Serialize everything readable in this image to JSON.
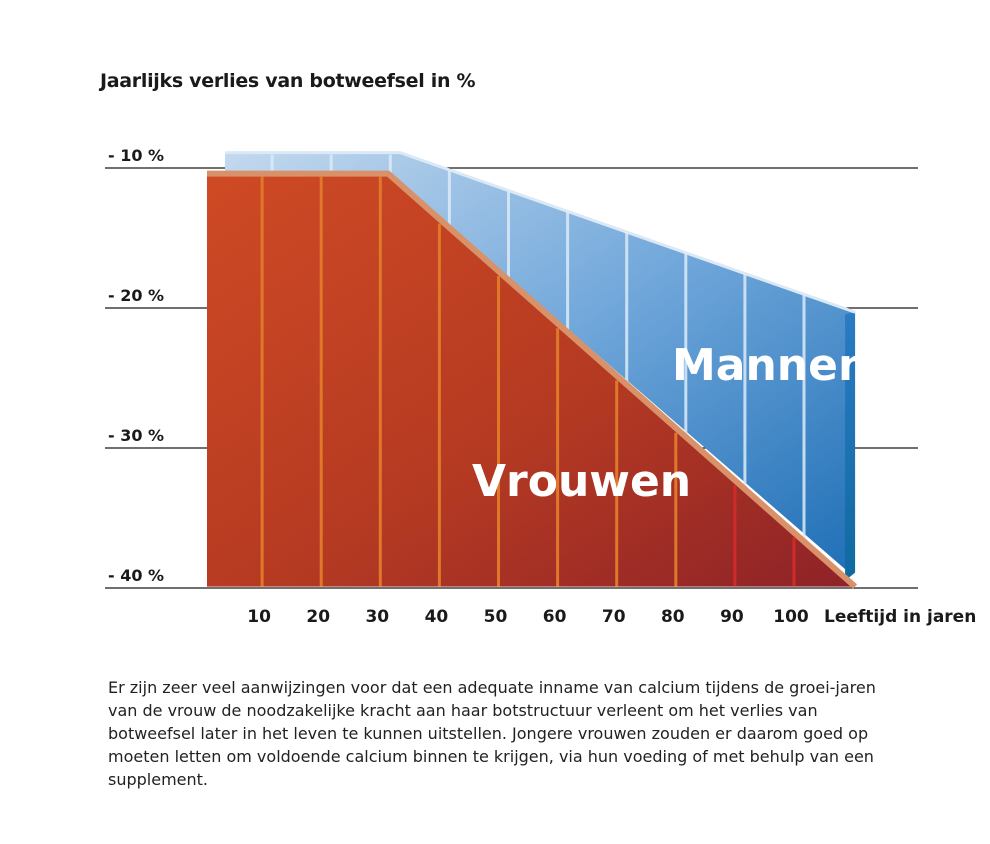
{
  "chart_data": {
    "type": "area",
    "title": "Jaarlijks verlies van botweefsel in %",
    "xlabel": "Leeftijd in jaren",
    "ylabel": "",
    "x": [
      0,
      10,
      20,
      30,
      40,
      50,
      60,
      70,
      80,
      90,
      100,
      110
    ],
    "xticks": [
      "10",
      "20",
      "30",
      "40",
      "50",
      "60",
      "70",
      "80",
      "90",
      "100"
    ],
    "yticks": [
      "- 10 %",
      "- 20 %",
      "- 30 %",
      "- 40 %"
    ],
    "ylim": [
      -40,
      -10
    ],
    "grid": true,
    "series": [
      {
        "name": "Mannen",
        "color": "#3f84c8",
        "x": [
          0,
          33,
          110
        ],
        "values": [
          -8.9,
          -8.9,
          -20.3
        ]
      },
      {
        "name": "Vrouwen",
        "color": "#b53a22",
        "x": [
          0,
          31,
          110
        ],
        "values": [
          -10.4,
          -10.4,
          -39.9
        ]
      }
    ]
  },
  "caption": "Er zijn zeer veel aanwijzingen voor dat een adequate inname van calcium tijdens de groei-jaren van de vrouw de noodzakelijke kracht aan haar botstructuur verleent om het verlies van botweefsel later in het leven te kunnen uitstellen. Jongere vrouwen zouden er daarom goed op moeten letten om voldoende calcium binnen te krijgen, via hun voeding of met behulp van een supplement."
}
